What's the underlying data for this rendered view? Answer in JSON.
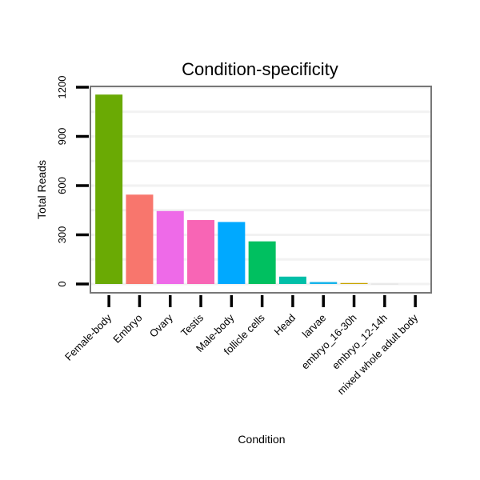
{
  "chart_data": {
    "type": "bar",
    "title": "Condition-specificity",
    "xlabel": "Condition",
    "ylabel": "Total Reads",
    "ylim": [
      0,
      1200
    ],
    "yticks": [
      0,
      300,
      600,
      900,
      1200
    ],
    "grid": true,
    "legend": "none",
    "categories": [
      "Female-body",
      "Embryo",
      "Ovary",
      "Testis",
      "Male-body",
      "follicle cells",
      "Head",
      "larvae",
      "embryo_16-30h",
      "embryo_12-14h",
      "mixed whole adult body"
    ],
    "values": [
      1155,
      545,
      445,
      390,
      378,
      260,
      45,
      12,
      6,
      1,
      0
    ],
    "colors": [
      "#6aaa04",
      "#f8766d",
      "#ee6ae8",
      "#f865b5",
      "#00a9ff",
      "#00c060",
      "#00bfa8",
      "#16b3ea",
      "#c8a400",
      "#cccccc",
      "#cccccc"
    ]
  }
}
